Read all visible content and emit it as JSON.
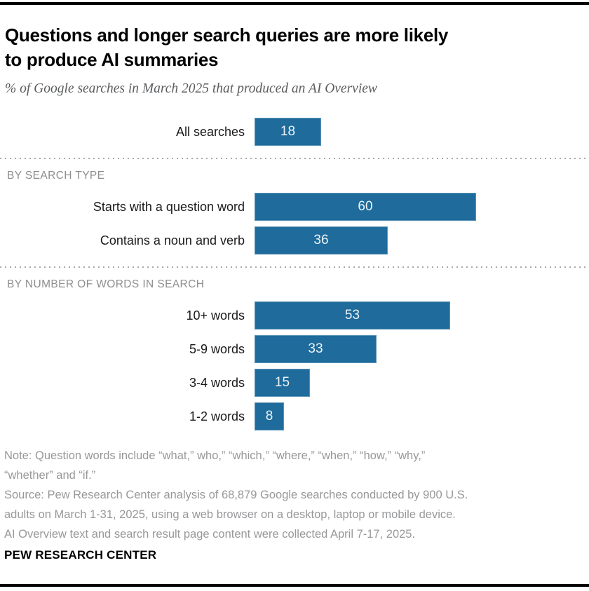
{
  "header": {
    "title": "Questions and longer search queries are more likely\nto produce AI summaries",
    "subtitle": "% of Google searches in March 2025 that produced an AI Overview"
  },
  "chart_data": {
    "type": "bar",
    "orientation": "horizontal",
    "title": "Questions and longer search queries are more likely to produce AI summaries",
    "subtitle": "% of Google searches in March 2025 that produced an AI Overview",
    "value_unit": "percent",
    "xlim": [
      0,
      60
    ],
    "grid": false,
    "legend": null,
    "bar_color": "#1e6b9c",
    "groups": [
      {
        "heading": "",
        "rows": [
          {
            "label": "All searches",
            "value": 18
          }
        ]
      },
      {
        "heading": "BY SEARCH TYPE",
        "rows": [
          {
            "label": "Starts with a question word",
            "value": 60
          },
          {
            "label": "Contains a noun and verb",
            "value": 36
          }
        ]
      },
      {
        "heading": "BY NUMBER OF WORDS IN SEARCH",
        "rows": [
          {
            "label": "10+ words",
            "value": 53
          },
          {
            "label": "5-9 words",
            "value": 33
          },
          {
            "label": "3-4 words",
            "value": 15
          },
          {
            "label": "1-2 words",
            "value": 8
          }
        ]
      }
    ]
  },
  "footer": {
    "note": "Note: Question words include “what,” who,” “which,” “where,” “when,” “how,” “why,”\n“whether” and “if.”",
    "source": "Source: Pew Research Center analysis of 68,879 Google searches conducted by 900 U.S.\nadults on March 1-31, 2025, using a web browser on a desktop, laptop or mobile device.\nAI Overview text and search result page content were collected April 7-17, 2025.",
    "brand": "PEW RESEARCH CENTER"
  },
  "colors": {
    "bar": "#1e6b9c",
    "bar_value_text": "#eef3f7",
    "title_text": "#000000",
    "subtitle_text": "#5a5c5e",
    "section_heading_text": "#8e8e8e",
    "note_text": "#97989a",
    "rules": "#000000",
    "divider_dots": "#a8a8a8",
    "background": "#ffffff"
  }
}
